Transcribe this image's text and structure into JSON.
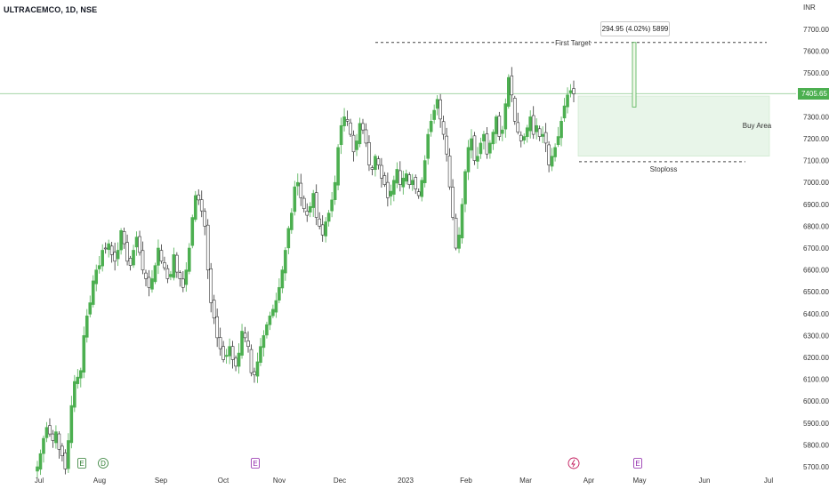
{
  "header": {
    "symbol": "ULTRACEMCO, 1D, NSE",
    "unit": "INR"
  },
  "colors": {
    "up": "#4caf50",
    "down": "#ffffff",
    "wick": "#333333",
    "band": "#e8f5e9",
    "price_line": "#a5d6a7"
  },
  "price_axis": {
    "ticks": [
      "7700.00",
      "7600.00",
      "7500.00",
      "7400.00",
      "7300.00",
      "7200.00",
      "7100.00",
      "7000.00",
      "6900.00",
      "6800.00",
      "6700.00",
      "6600.00",
      "6500.00",
      "6400.00",
      "6300.00",
      "6200.00",
      "6100.00",
      "6000.00",
      "5900.00",
      "5800.00",
      "5700.00"
    ],
    "last_price": "7405.65"
  },
  "time_axis": {
    "labels": [
      "Jul",
      "Aug",
      "Sep",
      "Oct",
      "Nov",
      "Dec",
      "2023",
      "Feb",
      "Mar",
      "Apr",
      "May",
      "Jun",
      "Jul"
    ]
  },
  "annotations": {
    "first_target": "First Target",
    "measure": "294.95 (4.02%) 5899",
    "buy_area": "Buy Area",
    "stoploss": "Stoploss"
  },
  "event_markers": [
    {
      "label": "E",
      "icon": "earnings-icon"
    },
    {
      "label": "D",
      "icon": "dividend-icon"
    },
    {
      "label": "E",
      "icon": "earnings-icon"
    },
    {
      "label": "",
      "icon": "split-icon"
    },
    {
      "label": "E",
      "icon": "earnings-icon"
    }
  ],
  "chart_data": {
    "type": "candlestick",
    "title": "ULTRACEMCO, 1D, NSE",
    "ylabel": "INR",
    "ylim": [
      5680,
      7760
    ],
    "last": 7405.65,
    "levels": {
      "first_target": 7640,
      "buy_area_top": 7395,
      "buy_area_bottom": 7120,
      "stoploss": 7095
    },
    "closes": [
      5700,
      5760,
      5830,
      5880,
      5850,
      5820,
      5860,
      5780,
      5750,
      5690,
      5820,
      5980,
      6090,
      6110,
      6140,
      6300,
      6390,
      6450,
      6550,
      6600,
      6620,
      6690,
      6700,
      6720,
      6670,
      6640,
      6690,
      6780,
      6720,
      6640,
      6620,
      6690,
      6750,
      6680,
      6600,
      6560,
      6520,
      6560,
      6620,
      6700,
      6640,
      6610,
      6560,
      6580,
      6670,
      6590,
      6560,
      6520,
      6600,
      6700,
      6840,
      6940,
      6920,
      6870,
      6800,
      6600,
      6450,
      6380,
      6290,
      6240,
      6190,
      6210,
      6250,
      6190,
      6160,
      6220,
      6320,
      6290,
      6250,
      6130,
      6120,
      6180,
      6250,
      6300,
      6350,
      6390,
      6420,
      6460,
      6520,
      6600,
      6690,
      6790,
      6860,
      6980,
      7000,
      6930,
      6880,
      6850,
      6890,
      6950,
      6840,
      6800,
      6760,
      6820,
      6860,
      6920,
      7000,
      7160,
      7260,
      7300,
      7280,
      7220,
      7140,
      7190,
      7270,
      7240,
      7180,
      7080,
      7060,
      7120,
      7080,
      7020,
      6990,
      6930,
      6960,
      7010,
      7060,
      6990,
      7020,
      7040,
      6990,
      7010,
      6970,
      6940,
      7010,
      7100,
      7220,
      7280,
      7330,
      7380,
      7290,
      7220,
      7130,
      6980,
      6840,
      6700,
      6760,
      6900,
      7050,
      7160,
      7200,
      7100,
      7120,
      7180,
      7220,
      7130,
      7180,
      7230,
      7300,
      7210,
      7240,
      7360,
      7480,
      7400,
      7280,
      7230,
      7190,
      7210,
      7250,
      7300,
      7220,
      7260,
      7210,
      7220,
      7180,
      7080,
      7120,
      7160,
      7210,
      7280,
      7350,
      7400,
      7420,
      7405.65
    ]
  }
}
